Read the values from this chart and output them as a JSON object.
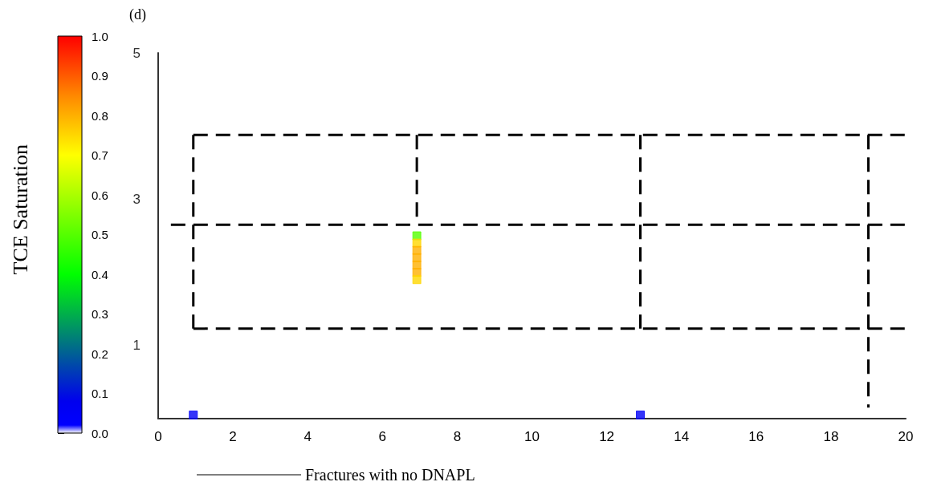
{
  "chart_data": {
    "type": "scatter",
    "title": "(d)",
    "clabel": "TCE Saturation",
    "legend": "bottom",
    "grid": false,
    "xlim": [
      0,
      20
    ],
    "xticks": [
      0,
      2,
      4,
      6,
      8,
      10,
      12,
      14,
      16,
      18,
      20
    ],
    "ylim": [
      0,
      5
    ],
    "yticks": [
      1,
      3,
      5
    ],
    "clim": [
      0,
      1
    ],
    "cticks": [
      {
        "value": 0,
        "label": "0.0"
      },
      0.1,
      0.2,
      0.3,
      0.4,
      0.5,
      0.6,
      0.7,
      0.8,
      0.9,
      {
        "value": 1,
        "label": "1.0"
      }
    ],
    "series": [
      {
        "marker": "square",
        "x": [
          6.92,
          6.92,
          6.92,
          6.92,
          6.92,
          6.92,
          6.92,
          0.94,
          12.9
        ],
        "values": [
          2.5,
          2.4,
          2.3,
          2.2,
          2.1,
          2.0,
          1.9,
          0.05,
          0.05
        ],
        "cvalues": [
          0.5,
          0.75,
          0.8,
          0.8,
          0.8,
          0.8,
          0.75,
          0.05,
          0.05
        ],
        "colors": [
          "#55ff00",
          "#ffd700",
          "#ffb000",
          "#ffb000",
          "#ffb000",
          "#ffb000",
          "#ffd700",
          "#0000f7",
          "#0000f7"
        ]
      },
      {
        "type": "line",
        "name": "Fractures with no DNAPL",
        "color": "#000000",
        "line_style": "dashed",
        "x": [
          0.94,
          20
        ],
        "values": [
          3.88,
          3.88
        ]
      },
      {
        "type": "line",
        "color": "#000000",
        "line_style": "dashed",
        "x": [
          0.34,
          20
        ],
        "values": [
          2.65,
          2.65
        ]
      },
      {
        "type": "line",
        "color": "#000000",
        "line_style": "dashed",
        "x": [
          0.94,
          20
        ],
        "values": [
          1.23,
          1.23
        ]
      },
      {
        "type": "line",
        "color": "#000000",
        "line_style": "dashed",
        "x": [
          0.94,
          0.94
        ],
        "values": [
          3.88,
          1.23
        ]
      },
      {
        "type": "line",
        "color": "#000000",
        "line_style": "dashed",
        "x": [
          6.92,
          6.92
        ],
        "values": [
          3.88,
          2.65
        ]
      },
      {
        "type": "line",
        "color": "#000000",
        "line_style": "dashed",
        "x": [
          12.9,
          12.9
        ],
        "values": [
          3.88,
          1.23
        ]
      },
      {
        "type": "line",
        "color": "#000000",
        "line_style": "dashed",
        "x": [
          19.0,
          19.0
        ],
        "values": [
          3.88,
          0.15
        ]
      }
    ]
  }
}
